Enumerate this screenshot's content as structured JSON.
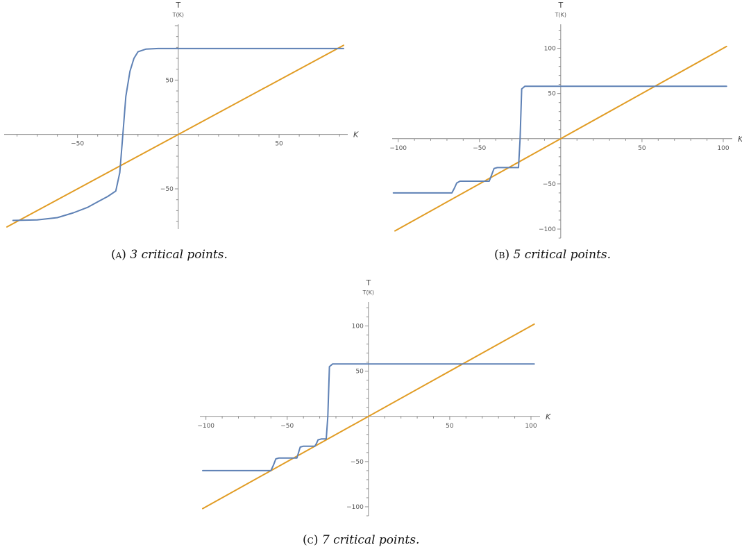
{
  "chart_data": [
    {
      "type": "line",
      "title": "",
      "xlabel": "K",
      "ylabel": "T",
      "ylabel_sub": "T(K)",
      "xlim": [
        -85,
        82
      ],
      "ylim": [
        -87,
        100
      ],
      "xticks": [
        -50,
        50
      ],
      "yticks": [
        -50,
        50
      ],
      "colors": {
        "step_curve": "#5e81b5",
        "diagonal": "#e19c24"
      },
      "caption": {
        "tag": "(a)",
        "text": "3 critical points."
      },
      "series": [
        {
          "key": "step_curve",
          "x": [
            -82,
            -70,
            -60,
            -52,
            -45,
            -40,
            -35,
            -31,
            -29,
            -27.5,
            -26,
            -24,
            -22,
            -20,
            -16,
            -10,
            0,
            82
          ],
          "y": [
            -79,
            -78.6,
            -76.5,
            -72,
            -67,
            -62,
            -57,
            -52,
            -35,
            0,
            35,
            58,
            70,
            76,
            78.5,
            79,
            79,
            79
          ]
        },
        {
          "key": "diagonal",
          "x": [
            -85,
            82
          ],
          "y": [
            -85,
            82
          ]
        }
      ]
    },
    {
      "type": "line",
      "title": "",
      "xlabel": "K",
      "ylabel": "T",
      "ylabel_sub": "T(K)",
      "xlim": [
        -102,
        103
      ],
      "ylim": [
        -110,
        125
      ],
      "xticks": [
        -100,
        -50,
        50,
        100
      ],
      "yticks": [
        -100,
        -50,
        50,
        100
      ],
      "colors": {
        "step_curve": "#5e81b5",
        "diagonal": "#e19c24"
      },
      "caption": {
        "tag": "(b)",
        "text": "5 critical points."
      },
      "series": [
        {
          "key": "step_curve",
          "x": [
            -103,
            -67,
            -65.5,
            -64,
            -62,
            -44,
            -42.5,
            -41,
            -39,
            -26,
            -25,
            -24,
            -22,
            102
          ],
          "y": [
            -60,
            -60,
            -55,
            -49,
            -47,
            -47,
            -40,
            -33,
            -32,
            -32,
            0,
            55,
            58,
            58
          ]
        },
        {
          "key": "diagonal",
          "x": [
            -102,
            102
          ],
          "y": [
            -102,
            102
          ]
        }
      ]
    },
    {
      "type": "line",
      "title": "",
      "xlabel": "K",
      "ylabel": "T",
      "ylabel_sub": "T(K)",
      "xlim": [
        -102,
        103
      ],
      "ylim": [
        -110,
        125
      ],
      "xticks": [
        -100,
        -50,
        50,
        100
      ],
      "yticks": [
        -100,
        -50,
        50,
        100
      ],
      "colors": {
        "step_curve": "#5e81b5",
        "diagonal": "#e19c24"
      },
      "caption": {
        "tag": "(c)",
        "text": "7 critical points."
      },
      "series": [
        {
          "key": "step_curve",
          "x": [
            -102,
            -60,
            -58.5,
            -57,
            -55,
            -44,
            -43,
            -42,
            -40,
            -33,
            -32,
            -31,
            -29,
            -26,
            -25,
            -24,
            -22,
            102
          ],
          "y": [
            -60,
            -60,
            -54,
            -47,
            -46,
            -46,
            -40,
            -34,
            -33,
            -33,
            -30,
            -26,
            -25,
            -25,
            0,
            55,
            58,
            58
          ]
        },
        {
          "key": "diagonal",
          "x": [
            -102,
            102
          ],
          "y": [
            -102,
            102
          ]
        }
      ]
    }
  ]
}
